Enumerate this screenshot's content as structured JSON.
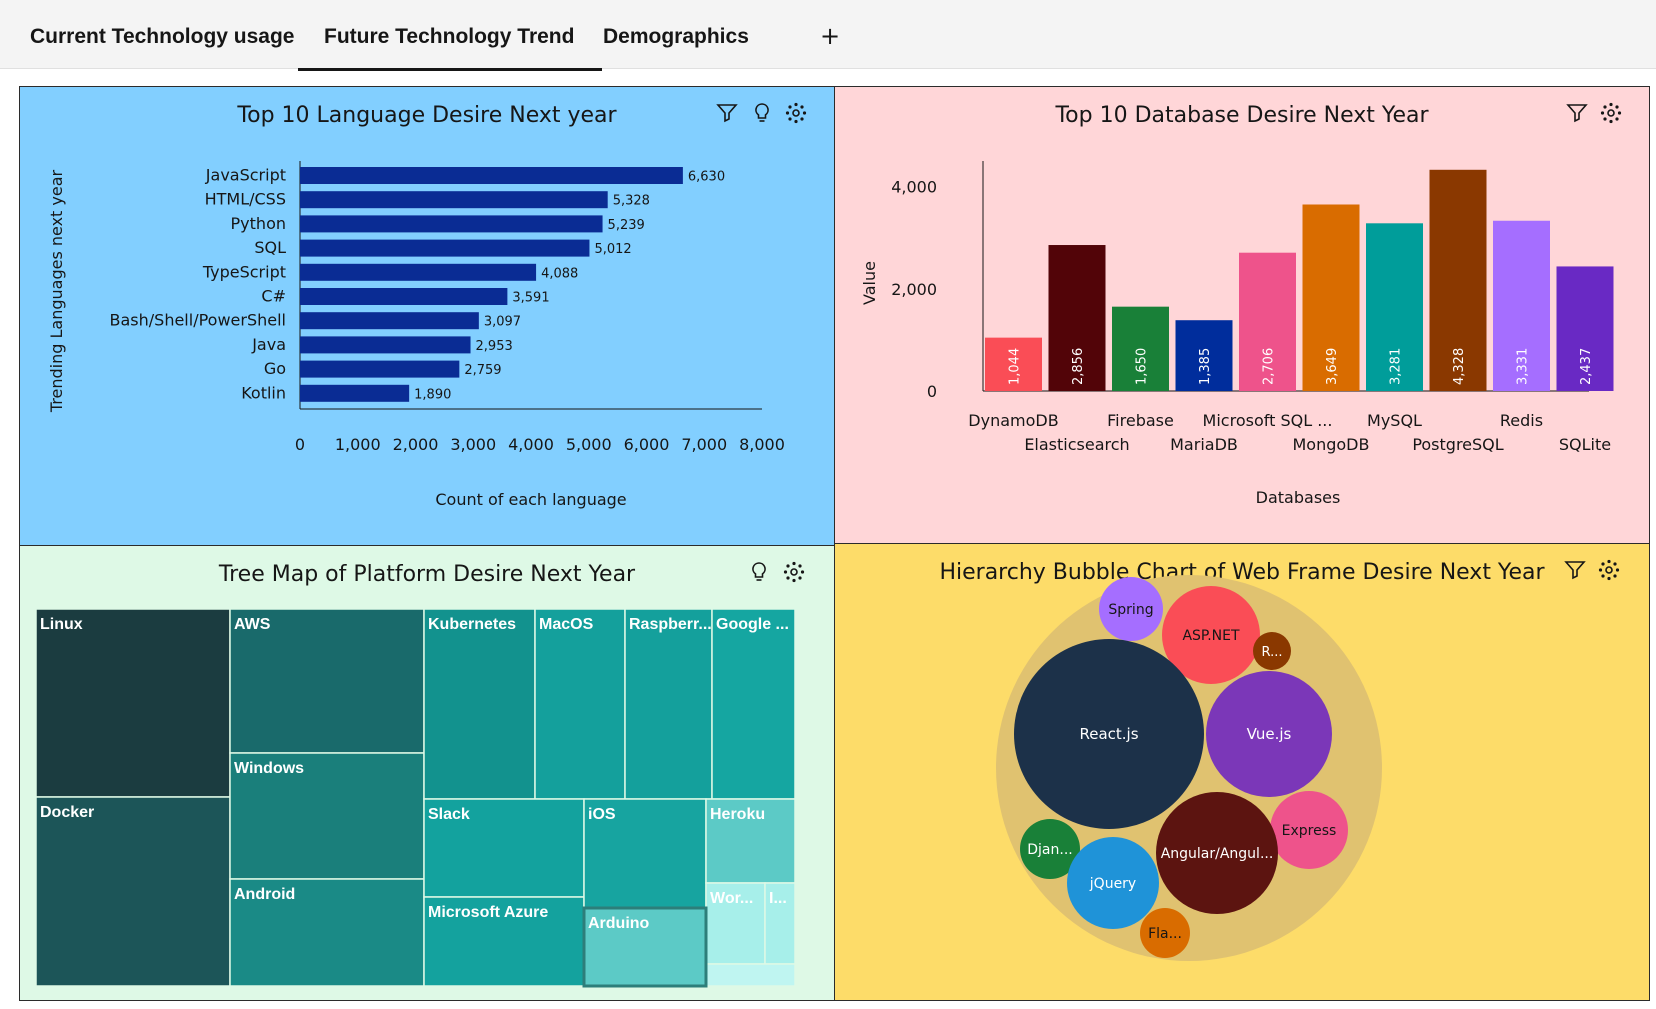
{
  "tabs": [
    {
      "label": "Current Technology usage"
    },
    {
      "label": "Future Technology Trend"
    },
    {
      "label": "Demographics"
    }
  ],
  "add_tab_label": "+",
  "panels": {
    "languages": {
      "title": "Top 10 Language Desire Next year"
    },
    "databases": {
      "title": "Top 10 Database Desire Next Year"
    },
    "platforms": {
      "title": "Tree Map of Platform Desire Next Year"
    },
    "webframes": {
      "title": "Hierarchy Bubble Chart of Web Frame Desire Next Year"
    }
  },
  "icons": {
    "filter": "filter-icon",
    "insight": "lightbulb-icon",
    "settings": "settings-icon"
  },
  "colors": {
    "lang_bg": "#82cfff",
    "db_bg": "#ffd6d8",
    "tree_bg": "#def9e6",
    "bubble_bg": "#fddc69",
    "lang_bar": "#0a2c94"
  },
  "chart_data": [
    {
      "type": "bar",
      "orientation": "horizontal",
      "title": "Top 10 Language Desire Next year",
      "xlabel": "Count of each language",
      "ylabel": "Trending Languages next year",
      "categories": [
        "JavaScript",
        "HTML/CSS",
        "Python",
        "SQL",
        "TypeScript",
        "C#",
        "Bash/Shell/PowerShell",
        "Java",
        "Go",
        "Kotlin"
      ],
      "values": [
        6630,
        5328,
        5239,
        5012,
        4088,
        3591,
        3097,
        2953,
        2759,
        1890
      ],
      "value_labels": [
        "6,630",
        "5,328",
        "5,239",
        "5,012",
        "4,088",
        "3,591",
        "3,097",
        "2,953",
        "2,759",
        "1,890"
      ],
      "xlim": [
        0,
        8000
      ],
      "xticks": [
        "0",
        "1,000",
        "2,000",
        "3,000",
        "4,000",
        "5,000",
        "6,000",
        "7,000",
        "8,000"
      ],
      "grid": false
    },
    {
      "type": "bar",
      "title": "Top 10 Database Desire Next Year",
      "xlabel": "Databases",
      "ylabel": "Value",
      "categories": [
        "DynamoDB",
        "Elasticsearch",
        "Firebase",
        "MariaDB",
        "Microsoft SQL ...",
        "MongoDB",
        "MySQL",
        "PostgreSQL",
        "Redis",
        "SQLite"
      ],
      "values": [
        1044,
        2856,
        1650,
        1385,
        2706,
        3649,
        3281,
        4328,
        3331,
        2437
      ],
      "value_labels": [
        "1,044",
        "2,856",
        "1,650",
        "1,385",
        "2,706",
        "3,649",
        "3,281",
        "4,328",
        "3,331",
        "2,437"
      ],
      "colors": [
        "#fa4d56",
        "#520408",
        "#198038",
        "#002d9c",
        "#ee538b",
        "#d96c00",
        "#009d9a",
        "#8a3800",
        "#a56eff",
        "#6929c4"
      ],
      "ylim": [
        0,
        4500
      ],
      "yticks": [
        "0",
        "2,000",
        "4,000"
      ],
      "grid": false
    },
    {
      "type": "treemap",
      "title": "Tree Map of Platform Desire Next Year",
      "labels": [
        "Linux",
        "Docker",
        "AWS",
        "Windows",
        "Android",
        "Kubernetes",
        "MacOS",
        "Raspberr...",
        "Google ...",
        "Slack",
        "Microsoft Azure",
        "iOS",
        "Arduino",
        "Heroku",
        "Wor...",
        "I..."
      ]
    },
    {
      "type": "bubble",
      "title": "Hierarchy Bubble Chart of Web Frame Desire Next Year",
      "labels": [
        "Spring",
        "ASP.NET",
        "R...",
        "React.js",
        "Vue.js",
        "Express",
        "Angular/Angul...",
        "Djan...",
        "jQuery",
        "Fla..."
      ]
    }
  ]
}
